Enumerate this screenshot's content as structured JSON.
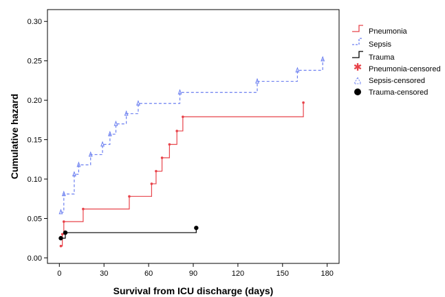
{
  "chart_data": {
    "type": "line",
    "subtype": "step",
    "title": "",
    "xlabel": "Survival from ICU discharge (days)",
    "ylabel": "Cumulative hazard",
    "xlim": [
      -8,
      188
    ],
    "ylim": [
      -0.007,
      0.315
    ],
    "xticks": [
      0,
      30,
      60,
      90,
      120,
      150,
      180
    ],
    "yticks": [
      0.0,
      0.05,
      0.1,
      0.15,
      0.2,
      0.25,
      0.3
    ],
    "xtick_labels": [
      "0",
      "30",
      "60",
      "90",
      "120",
      "150",
      "180"
    ],
    "ytick_labels": [
      "0.00",
      "0.05",
      "0.10",
      "0.15",
      "0.20",
      "0.25",
      "0.30"
    ],
    "grid": false,
    "legend": "right",
    "series": [
      {
        "name": "Pneumonia",
        "color": "#e8434a",
        "dash": "solid",
        "censored_marker": "star",
        "points": [
          [
            1,
            0.015
          ],
          [
            2,
            0.03
          ],
          [
            3,
            0.046
          ],
          [
            16,
            0.062
          ],
          [
            47,
            0.078
          ],
          [
            62,
            0.094
          ],
          [
            65,
            0.11
          ],
          [
            69,
            0.127
          ],
          [
            74,
            0.144
          ],
          [
            79,
            0.161
          ],
          [
            83,
            0.179
          ],
          [
            164,
            0.197
          ]
        ]
      },
      {
        "name": "Sepsis",
        "color": "#6a7ef0",
        "dash": "dashed",
        "censored_marker": "triangle",
        "points": [
          [
            1,
            0.058
          ],
          [
            3,
            0.081
          ],
          [
            10,
            0.106
          ],
          [
            13,
            0.118
          ],
          [
            21,
            0.131
          ],
          [
            29,
            0.144
          ],
          [
            34,
            0.157
          ],
          [
            38,
            0.17
          ],
          [
            45,
            0.183
          ],
          [
            53,
            0.196
          ],
          [
            81,
            0.21
          ],
          [
            133,
            0.224
          ],
          [
            160,
            0.238
          ],
          [
            177,
            0.252
          ]
        ]
      },
      {
        "name": "Trauma",
        "color": "#000000",
        "dash": "solid",
        "censored_marker": "circle",
        "points": [
          [
            1,
            0.025
          ],
          [
            4,
            0.032
          ],
          [
            92,
            0.038
          ]
        ]
      }
    ],
    "legend_entries": [
      "Pneumonia",
      "Sepsis",
      "Trauma",
      "Pneumonia-censored",
      "Sepsis-censored",
      "Trauma-censored"
    ]
  }
}
